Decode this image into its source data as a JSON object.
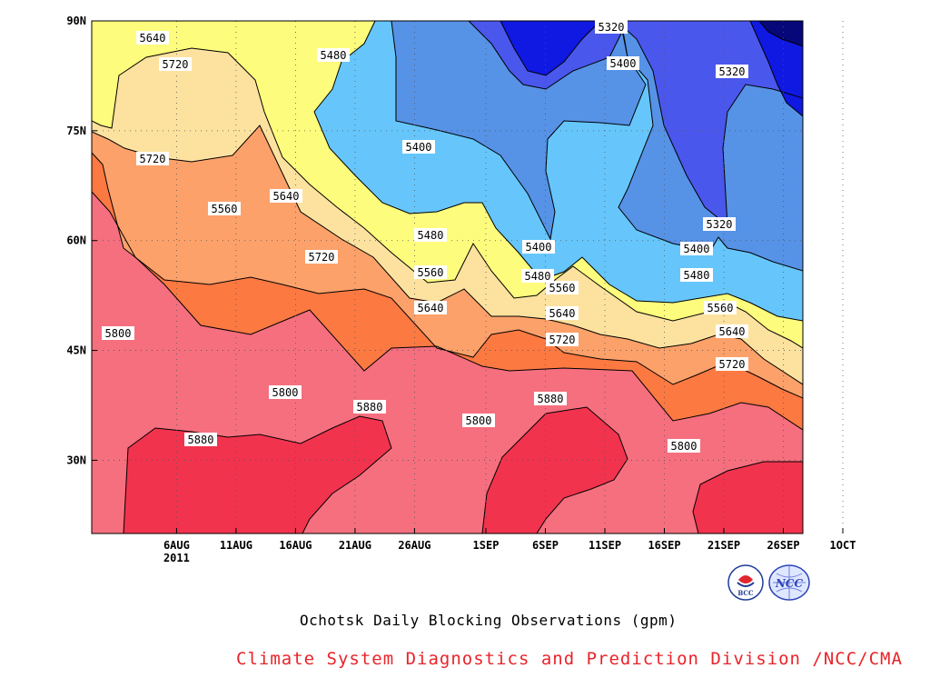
{
  "chart_data": {
    "type": "heatmap",
    "x_ticks": [
      "6AUG",
      "11AUG",
      "16AUG",
      "21AUG",
      "26AUG",
      "1SEP",
      "6SEP",
      "11SEP",
      "16SEP",
      "21SEP",
      "26SEP",
      "1OCT"
    ],
    "x_year_label": "2011",
    "x_range": [
      "2011-08-02",
      "2011-10-01"
    ],
    "y_ticks": [
      "30N",
      "45N",
      "60N",
      "75N",
      "90N"
    ],
    "y_range": [
      20,
      90
    ],
    "grid": true,
    "contour_interval": 80,
    "contour_levels": [
      5320,
      5400,
      5480,
      5560,
      5640,
      5720,
      5800,
      5880
    ],
    "contour_labels": [
      "5320",
      "5400",
      "5480",
      "5560",
      "5640",
      "5720",
      "5800",
      "5880"
    ],
    "fill_colors": {
      "above_5880": "#f2334e",
      "5800_5880": "#f56f7f",
      "5720_5800": "#fc7941",
      "5640_5720": "#fca16a",
      "5560_5640": "#fde29f",
      "5480_5560": "#fefc7c",
      "5400_5480": "#66c6fb",
      "5320_5400": "#5692e6",
      "5240_5320": "#4a57ec",
      "5160_5240": "#0f19e2",
      "below_5160": "#06087a"
    }
  },
  "subtitle": "Ochotsk Daily Blocking Observations (gpm)",
  "credit": "Climate System Diagnostics and Prediction Division /NCC/CMA",
  "logos": {
    "left": {
      "text": "BCC",
      "color": "#1e3c96"
    },
    "right": {
      "text": "NCC",
      "color": "#2c44b8"
    }
  }
}
